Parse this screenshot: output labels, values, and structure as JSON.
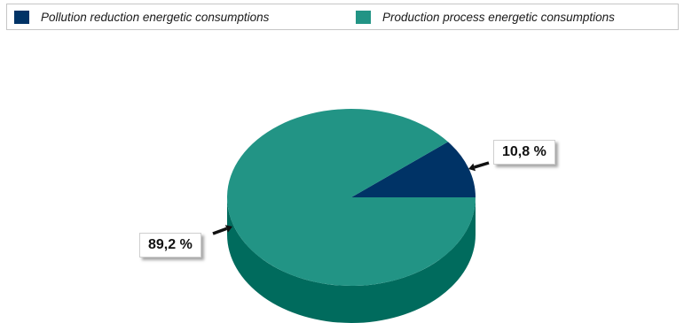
{
  "chart_data": {
    "type": "pie",
    "style": "3d",
    "legend_placement": "top",
    "series": [
      {
        "name": "Pollution reduction energetic consumptions",
        "value": 10.8,
        "label": "10,8 %",
        "color": "#003366"
      },
      {
        "name": "Production process energetic consumptions",
        "value": 89.2,
        "label": "89,2 %",
        "color": "#229485"
      }
    ],
    "side_color": "#006b5d"
  }
}
